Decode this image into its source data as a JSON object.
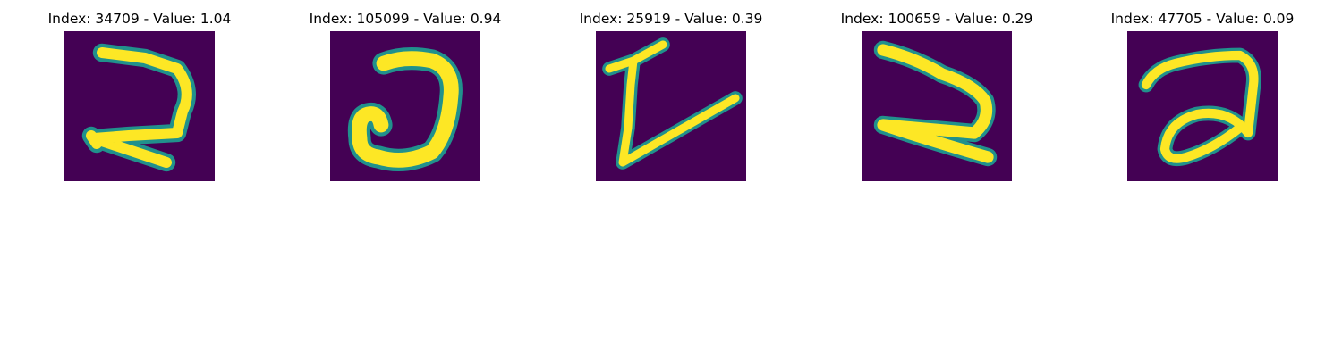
{
  "figure": {
    "panels": [
      {
        "title": "Index: 34709 - Value: 1.04"
      },
      {
        "title": "Index: 105099 - Value: 0.94"
      },
      {
        "title": "Index: 25919 - Value: 0.39"
      },
      {
        "title": "Index: 100659 - Value: 0.29"
      },
      {
        "title": "Index: 47705 - Value: 0.09"
      }
    ],
    "colors": {
      "background": "#440154",
      "stroke": "#fde725",
      "stroke_edge": "#21918c"
    }
  }
}
